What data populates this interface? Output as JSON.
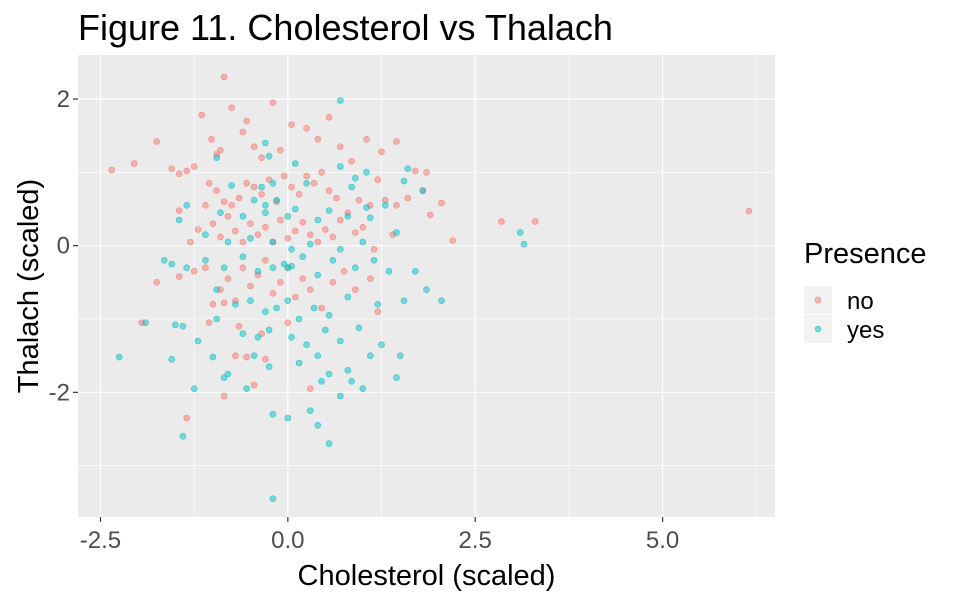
{
  "chart_data": {
    "type": "scatter",
    "title": "Figure 11. Cholesterol vs Thalach",
    "xlabel": "Cholesterol (scaled)",
    "ylabel": "Thalach (scaled)",
    "xlim": [
      -2.8,
      6.5
    ],
    "ylim": [
      -3.7,
      2.6
    ],
    "x_ticks": [
      -2.5,
      0.0,
      2.5,
      5.0
    ],
    "x_tick_labels": [
      "-2.5",
      "0.0",
      "2.5",
      "5.0"
    ],
    "y_ticks": [
      -2,
      0,
      2
    ],
    "y_tick_labels": [
      "-2",
      "0",
      "2"
    ],
    "grid": true,
    "panel_background": "#ebebeb",
    "point_opacity": 0.5,
    "legend": {
      "title": "Presence",
      "position": "right"
    },
    "series": [
      {
        "name": "no",
        "color": "#F8766D",
        "points": [
          [
            -2.35,
            1.03
          ],
          [
            -2.05,
            1.12
          ],
          [
            -1.75,
            1.42
          ],
          [
            -1.55,
            1.05
          ],
          [
            -1.45,
            0.98
          ],
          [
            -1.35,
            1.02
          ],
          [
            -1.25,
            1.08
          ],
          [
            -1.15,
            1.78
          ],
          [
            -1.02,
            1.45
          ],
          [
            -0.95,
            1.25
          ],
          [
            -0.9,
            1.3
          ],
          [
            -0.85,
            2.3
          ],
          [
            -0.75,
            1.88
          ],
          [
            -0.6,
            1.55
          ],
          [
            -0.55,
            1.7
          ],
          [
            -0.45,
            1.35
          ],
          [
            -0.35,
            1.2
          ],
          [
            -0.2,
            1.95
          ],
          [
            -0.1,
            1.3
          ],
          [
            0.05,
            1.65
          ],
          [
            0.25,
            1.6
          ],
          [
            0.4,
            1.45
          ],
          [
            0.55,
            1.75
          ],
          [
            0.7,
            1.35
          ],
          [
            0.85,
            1.15
          ],
          [
            1.05,
            1.45
          ],
          [
            1.25,
            1.28
          ],
          [
            1.45,
            1.42
          ],
          [
            1.7,
            1.02
          ],
          [
            1.85,
            1.0
          ],
          [
            -1.05,
            0.85
          ],
          [
            -0.95,
            0.75
          ],
          [
            -0.85,
            0.6
          ],
          [
            -0.75,
            0.55
          ],
          [
            -0.65,
            0.65
          ],
          [
            -0.55,
            0.85
          ],
          [
            -0.45,
            0.8
          ],
          [
            -0.35,
            0.7
          ],
          [
            -0.25,
            0.9
          ],
          [
            -0.15,
            0.6
          ],
          [
            -0.05,
            0.95
          ],
          [
            0.05,
            0.8
          ],
          [
            0.15,
            0.7
          ],
          [
            0.25,
            0.95
          ],
          [
            0.35,
            0.85
          ],
          [
            0.45,
            1.0
          ],
          [
            0.55,
            0.75
          ],
          [
            0.65,
            0.65
          ],
          [
            0.8,
            0.45
          ],
          [
            0.95,
            0.62
          ],
          [
            1.1,
            0.55
          ],
          [
            1.2,
            0.9
          ],
          [
            1.3,
            0.62
          ],
          [
            1.45,
            0.55
          ],
          [
            1.6,
            0.65
          ],
          [
            1.8,
            0.75
          ],
          [
            1.9,
            0.42
          ],
          [
            2.05,
            0.58
          ],
          [
            2.2,
            0.07
          ],
          [
            2.85,
            0.33
          ],
          [
            3.3,
            0.33
          ],
          [
            6.15,
            0.47
          ],
          [
            -1.45,
            0.48
          ],
          [
            -1.3,
            0.05
          ],
          [
            -1.2,
            0.22
          ],
          [
            -1.1,
            0.55
          ],
          [
            -1.0,
            0.3
          ],
          [
            -0.9,
            0.12
          ],
          [
            -0.8,
            0.4
          ],
          [
            -0.7,
            0.2
          ],
          [
            -0.6,
            0.05
          ],
          [
            -0.5,
            0.3
          ],
          [
            -0.4,
            0.15
          ],
          [
            -0.3,
            0.25
          ],
          [
            -0.2,
            0.05
          ],
          [
            -0.1,
            0.35
          ],
          [
            0.0,
            0.1
          ],
          [
            0.1,
            0.2
          ],
          [
            0.2,
            0.32
          ],
          [
            0.3,
            0.15
          ],
          [
            0.4,
            0.05
          ],
          [
            0.5,
            0.22
          ],
          [
            0.6,
            0.12
          ],
          [
            0.7,
            0.35
          ],
          [
            0.9,
            0.18
          ],
          [
            1.0,
            0.25
          ],
          [
            1.15,
            -0.05
          ],
          [
            1.4,
            0.15
          ],
          [
            -1.75,
            -0.5
          ],
          [
            -1.45,
            -0.42
          ],
          [
            -1.25,
            -0.35
          ],
          [
            -1.1,
            -0.3
          ],
          [
            -1.0,
            -0.8
          ],
          [
            -0.9,
            -0.6
          ],
          [
            -0.8,
            -0.45
          ],
          [
            -0.7,
            -0.75
          ],
          [
            -0.6,
            -0.3
          ],
          [
            -0.5,
            -0.55
          ],
          [
            -0.4,
            -0.4
          ],
          [
            -0.3,
            -0.2
          ],
          [
            -0.2,
            -0.65
          ],
          [
            -0.1,
            -0.5
          ],
          [
            0.0,
            -0.3
          ],
          [
            0.1,
            -0.7
          ],
          [
            0.2,
            -0.45
          ],
          [
            0.3,
            -0.6
          ],
          [
            0.45,
            -0.85
          ],
          [
            0.6,
            -0.5
          ],
          [
            0.75,
            -0.35
          ],
          [
            0.9,
            -0.6
          ],
          [
            1.1,
            -0.45
          ],
          [
            1.2,
            -0.9
          ],
          [
            -1.95,
            -1.05
          ],
          [
            -1.05,
            -1.05
          ],
          [
            -0.85,
            -0.78
          ],
          [
            -0.65,
            -1.1
          ],
          [
            -0.7,
            -1.5
          ],
          [
            -0.55,
            -1.52
          ],
          [
            -0.35,
            -1.2
          ],
          [
            -0.3,
            -1.55
          ],
          [
            0.0,
            -1.05
          ],
          [
            0.3,
            -1.95
          ],
          [
            -1.35,
            -2.35
          ],
          [
            -0.85,
            -2.05
          ],
          [
            -0.45,
            -1.9
          ]
        ]
      },
      {
        "name": "yes",
        "color": "#00BFC4",
        "points": [
          [
            0.7,
            1.98
          ],
          [
            -0.3,
            1.4
          ],
          [
            -0.95,
            1.2
          ],
          [
            -0.25,
            1.22
          ],
          [
            0.1,
            1.12
          ],
          [
            0.7,
            1.08
          ],
          [
            1.05,
            1.0
          ],
          [
            1.6,
            1.05
          ],
          [
            -0.75,
            0.82
          ],
          [
            -0.35,
            0.8
          ],
          [
            -0.2,
            0.85
          ],
          [
            0.25,
            0.85
          ],
          [
            0.85,
            0.8
          ],
          [
            0.9,
            0.92
          ],
          [
            1.55,
            0.88
          ],
          [
            -0.45,
            0.62
          ],
          [
            -0.3,
            0.55
          ],
          [
            -0.15,
            0.62
          ],
          [
            0.1,
            0.5
          ],
          [
            0.55,
            0.48
          ],
          [
            1.05,
            0.52
          ],
          [
            1.3,
            0.55
          ],
          [
            1.8,
            0.75
          ],
          [
            -1.35,
            0.55
          ],
          [
            -1.45,
            0.35
          ],
          [
            -0.9,
            0.45
          ],
          [
            -0.6,
            0.4
          ],
          [
            -0.3,
            0.45
          ],
          [
            0.0,
            0.4
          ],
          [
            0.4,
            0.35
          ],
          [
            0.8,
            0.4
          ],
          [
            1.1,
            0.38
          ],
          [
            1.45,
            0.18
          ],
          [
            -1.1,
            0.15
          ],
          [
            -0.8,
            0.05
          ],
          [
            -0.5,
            0.1
          ],
          [
            -0.2,
            0.05
          ],
          [
            0.05,
            -0.05
          ],
          [
            0.3,
            0.02
          ],
          [
            0.7,
            -0.05
          ],
          [
            1.0,
            0.05
          ],
          [
            3.1,
            0.18
          ],
          [
            3.15,
            0.02
          ],
          [
            -1.65,
            -0.2
          ],
          [
            -1.55,
            -0.25
          ],
          [
            -1.35,
            -0.3
          ],
          [
            -1.1,
            -0.2
          ],
          [
            -0.85,
            -0.3
          ],
          [
            -0.6,
            -0.15
          ],
          [
            -0.4,
            -0.35
          ],
          [
            -0.2,
            -0.3
          ],
          [
            -0.05,
            -0.25
          ],
          [
            0.0,
            -0.3
          ],
          [
            0.05,
            -0.28
          ],
          [
            0.2,
            -0.15
          ],
          [
            0.4,
            -0.4
          ],
          [
            0.6,
            -0.2
          ],
          [
            0.9,
            -0.3
          ],
          [
            1.15,
            -0.2
          ],
          [
            1.35,
            -0.35
          ],
          [
            1.7,
            -0.35
          ],
          [
            -0.95,
            -0.6
          ],
          [
            -0.7,
            -0.8
          ],
          [
            -0.5,
            -0.75
          ],
          [
            -0.3,
            -0.9
          ],
          [
            -0.15,
            -0.85
          ],
          [
            0.0,
            -0.75
          ],
          [
            0.15,
            -1.0
          ],
          [
            0.35,
            -0.85
          ],
          [
            0.55,
            -0.95
          ],
          [
            0.8,
            -0.7
          ],
          [
            1.2,
            -0.8
          ],
          [
            1.55,
            -0.75
          ],
          [
            1.85,
            -0.6
          ],
          [
            2.05,
            -0.75
          ],
          [
            -1.9,
            -1.05
          ],
          [
            -1.5,
            -1.08
          ],
          [
            -1.4,
            -1.1
          ],
          [
            -1.2,
            -1.3
          ],
          [
            -0.95,
            -1.0
          ],
          [
            -0.6,
            -1.2
          ],
          [
            -0.4,
            -1.25
          ],
          [
            -0.25,
            -1.15
          ],
          [
            0.05,
            -1.25
          ],
          [
            0.25,
            -1.35
          ],
          [
            0.5,
            -1.15
          ],
          [
            0.7,
            -1.3
          ],
          [
            0.95,
            -1.12
          ],
          [
            1.25,
            -1.35
          ],
          [
            -2.25,
            -1.52
          ],
          [
            -1.55,
            -1.55
          ],
          [
            -1.0,
            -1.52
          ],
          [
            -0.8,
            -1.75
          ],
          [
            -0.45,
            -1.5
          ],
          [
            -0.25,
            -1.65
          ],
          [
            0.15,
            -1.6
          ],
          [
            0.4,
            -1.5
          ],
          [
            0.55,
            -1.75
          ],
          [
            0.8,
            -1.7
          ],
          [
            1.1,
            -1.5
          ],
          [
            1.5,
            -1.5
          ],
          [
            1.45,
            -1.8
          ],
          [
            -1.25,
            -1.95
          ],
          [
            -0.85,
            -1.8
          ],
          [
            -0.55,
            -1.95
          ],
          [
            0.45,
            -1.85
          ],
          [
            0.7,
            -2.05
          ],
          [
            0.85,
            -1.85
          ],
          [
            1.0,
            -1.95
          ],
          [
            0.3,
            -2.25
          ],
          [
            0.0,
            -2.35
          ],
          [
            -0.2,
            -2.3
          ],
          [
            0.4,
            -2.45
          ],
          [
            -1.4,
            -2.6
          ],
          [
            0.55,
            -2.7
          ],
          [
            -0.2,
            -3.45
          ]
        ]
      }
    ]
  }
}
